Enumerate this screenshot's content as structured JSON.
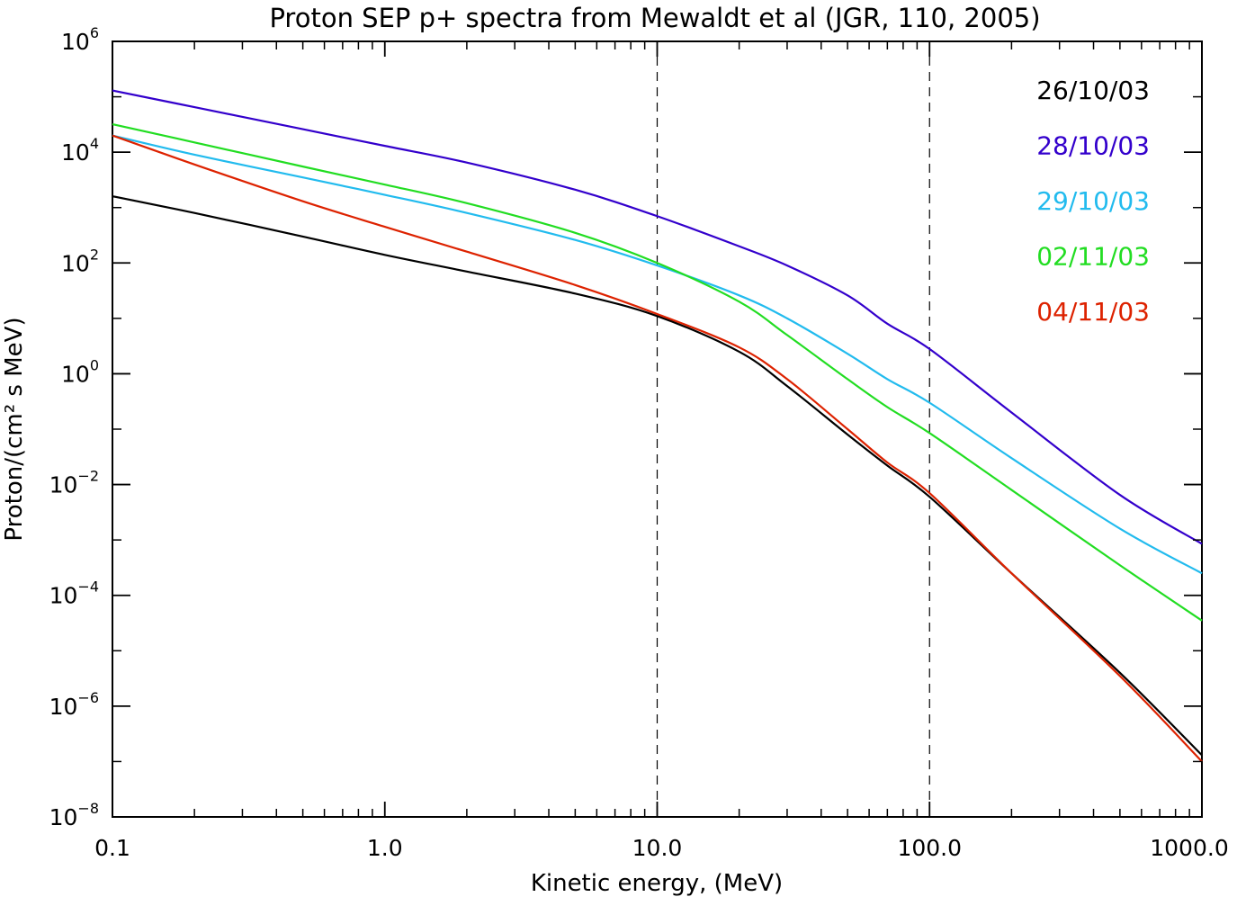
{
  "chart_data": {
    "type": "line",
    "title": "Proton SEP p+ spectra from Mewaldt et al (JGR, 110, 2005)",
    "xlabel": "Kinetic energy, (MeV)",
    "ylabel": "Proton/(cm² s MeV)",
    "x_scale": "log",
    "y_scale": "log",
    "xlim": [
      0.1,
      1000.0
    ],
    "ylim": [
      1e-08,
      1000000.0
    ],
    "x_ticks": [
      {
        "value": 0.1,
        "label": "0.1"
      },
      {
        "value": 1.0,
        "label": "1.0"
      },
      {
        "value": 10.0,
        "label": "10.0"
      },
      {
        "value": 100.0,
        "label": "100.0"
      },
      {
        "value": 1000.0,
        "label": "1000.0"
      }
    ],
    "y_ticks": [
      {
        "value": 1e-08,
        "base": "10",
        "exp": "−8"
      },
      {
        "value": 1e-06,
        "base": "10",
        "exp": "−6"
      },
      {
        "value": 0.0001,
        "base": "10",
        "exp": "−4"
      },
      {
        "value": 0.01,
        "base": "10",
        "exp": "−2"
      },
      {
        "value": 1,
        "base": "10",
        "exp": "0"
      },
      {
        "value": 100.0,
        "base": "10",
        "exp": "2"
      },
      {
        "value": 10000.0,
        "base": "10",
        "exp": "4"
      },
      {
        "value": 1000000.0,
        "base": "10",
        "exp": "6"
      }
    ],
    "reference_lines": [
      {
        "x": 10.0,
        "style": "dashed"
      },
      {
        "x": 100.0,
        "style": "dashed"
      }
    ],
    "grid": false,
    "legend_position": "top-right",
    "series": [
      {
        "name": "26/10/03",
        "color": "#000000",
        "x": [
          0.1,
          0.2,
          0.5,
          1,
          2,
          5,
          10,
          20,
          30,
          50,
          70,
          100,
          200,
          500,
          1000
        ],
        "y": [
          1600.0,
          800.0,
          300.0,
          140.0,
          70.0,
          28.0,
          11.0,
          2.5,
          0.6,
          0.08,
          0.022,
          0.006,
          0.00025,
          4e-06,
          1.3e-07
        ]
      },
      {
        "name": "28/10/03",
        "color": "#3300cc",
        "x": [
          0.1,
          0.2,
          0.5,
          1,
          2,
          5,
          10,
          20,
          30,
          50,
          70,
          100,
          200,
          500,
          1000
        ],
        "y": [
          130000.0,
          65000.0,
          26000.0,
          13000.0,
          6500.0,
          2100.0,
          700.0,
          200.0,
          90.0,
          26.0,
          8.0,
          2.8,
          0.2,
          0.0065,
          0.00085
        ]
      },
      {
        "name": "29/10/03",
        "color": "#22bbee",
        "x": [
          0.1,
          0.2,
          0.5,
          1,
          2,
          5,
          10,
          20,
          30,
          50,
          70,
          100,
          200,
          500,
          1000
        ],
        "y": [
          20000.0,
          9000.0,
          3500.0,
          1700.0,
          800.0,
          260.0,
          90.0,
          26.0,
          10.0,
          2.3,
          0.8,
          0.3,
          0.03,
          0.0016,
          0.00025
        ]
      },
      {
        "name": "02/11/03",
        "color": "#22dd22",
        "x": [
          0.1,
          0.2,
          0.5,
          1,
          2,
          5,
          10,
          20,
          30,
          50,
          70,
          100,
          200,
          500,
          1000
        ],
        "y": [
          32000.0,
          15000.0,
          5500.0,
          2600.0,
          1200.0,
          350.0,
          100.0,
          20.0,
          5.0,
          0.8,
          0.25,
          0.085,
          0.008,
          0.00035,
          3.5e-05
        ]
      },
      {
        "name": "04/11/03",
        "color": "#dd2200",
        "x": [
          0.1,
          0.2,
          0.5,
          1,
          2,
          5,
          10,
          20,
          30,
          50,
          70,
          100,
          200,
          500,
          1000
        ],
        "y": [
          20000.0,
          6000.0,
          1300.0,
          450.0,
          160.0,
          40.0,
          12.0,
          3.0,
          0.8,
          0.1,
          0.025,
          0.007,
          0.00025,
          3.5e-06,
          1e-07
        ]
      }
    ]
  }
}
